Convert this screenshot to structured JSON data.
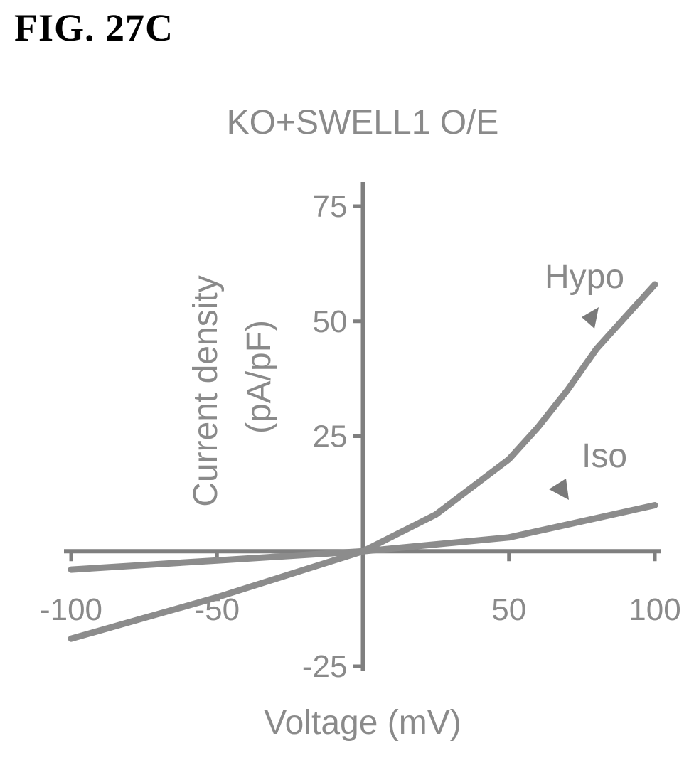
{
  "figure_label": "FIG. 27C",
  "chart_data": {
    "type": "line",
    "title": "KO+SWELL1 O/E",
    "xlabel": "Voltage (mV)",
    "ylabel_line1": "Current density",
    "ylabel_line2": "(pA/pF)",
    "xlim": [
      -100,
      100
    ],
    "ylim": [
      -25,
      75
    ],
    "x_ticks": [
      {
        "value": -100,
        "label": "-100"
      },
      {
        "value": -50,
        "label": "-50"
      },
      {
        "value": 50,
        "label": "50"
      },
      {
        "value": 100,
        "label": "100"
      }
    ],
    "y_ticks": [
      {
        "value": 75,
        "label": "75"
      },
      {
        "value": 50,
        "label": "50"
      },
      {
        "value": 25,
        "label": "25"
      },
      {
        "value": -25,
        "label": "-25"
      }
    ],
    "series": [
      {
        "name": "Hypo",
        "x": [
          -100,
          -75,
          -50,
          -25,
          0,
          25,
          50,
          60,
          70,
          80,
          90,
          100
        ],
        "y": [
          -19,
          -14.5,
          -10,
          -5,
          0,
          8,
          20,
          27,
          35,
          44,
          51,
          58
        ]
      },
      {
        "name": "Iso",
        "x": [
          -100,
          -50,
          0,
          50,
          100
        ],
        "y": [
          -4,
          -2,
          0,
          3,
          10
        ]
      }
    ],
    "grid": false,
    "colors": {
      "axes": "#7f7f7f",
      "lines": "#8c8c8c",
      "text": "#8a8a8a"
    }
  }
}
